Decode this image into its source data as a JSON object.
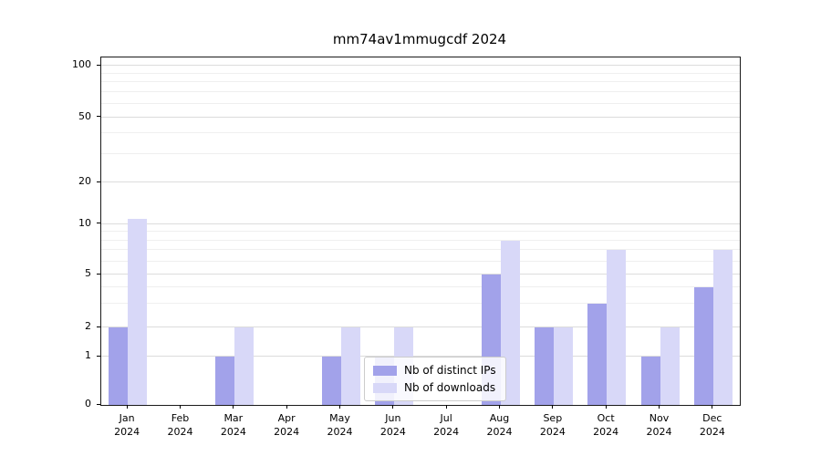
{
  "figure": {
    "title": "mm74av1mmugcdf 2024"
  },
  "chart_data": {
    "type": "bar",
    "title": "mm74av1mmugcdf 2024",
    "categories": [
      "Jan 2024",
      "Feb 2024",
      "Mar 2024",
      "Apr 2024",
      "May 2024",
      "Jun 2024",
      "Jul 2024",
      "Aug 2024",
      "Sep 2024",
      "Oct 2024",
      "Nov 2024",
      "Dec 2024"
    ],
    "series": [
      {
        "name": "Nb of distinct IPs",
        "color": "#a2a2ea",
        "values": [
          2,
          0,
          1,
          0,
          1,
          1,
          0,
          5,
          2,
          3,
          1,
          4
        ]
      },
      {
        "name": "Nb of downloads",
        "color": "#d8d8f8",
        "values": [
          11,
          0,
          2,
          0,
          2,
          2,
          0,
          8,
          2,
          7,
          2,
          7
        ]
      }
    ],
    "xlabel": "",
    "ylabel": "",
    "y_axis": {
      "scale": "symlog",
      "ticks": [
        0,
        1,
        2,
        5,
        10,
        20,
        50,
        100
      ],
      "minor_ticks": [
        3,
        4,
        6,
        7,
        8,
        9,
        30,
        40,
        60,
        70,
        80,
        90
      ],
      "range": [
        0,
        110
      ]
    },
    "grid": true,
    "legend": {
      "position": "bottom-center",
      "items": [
        "Nb of distinct IPs",
        "Nb of downloads"
      ]
    }
  }
}
